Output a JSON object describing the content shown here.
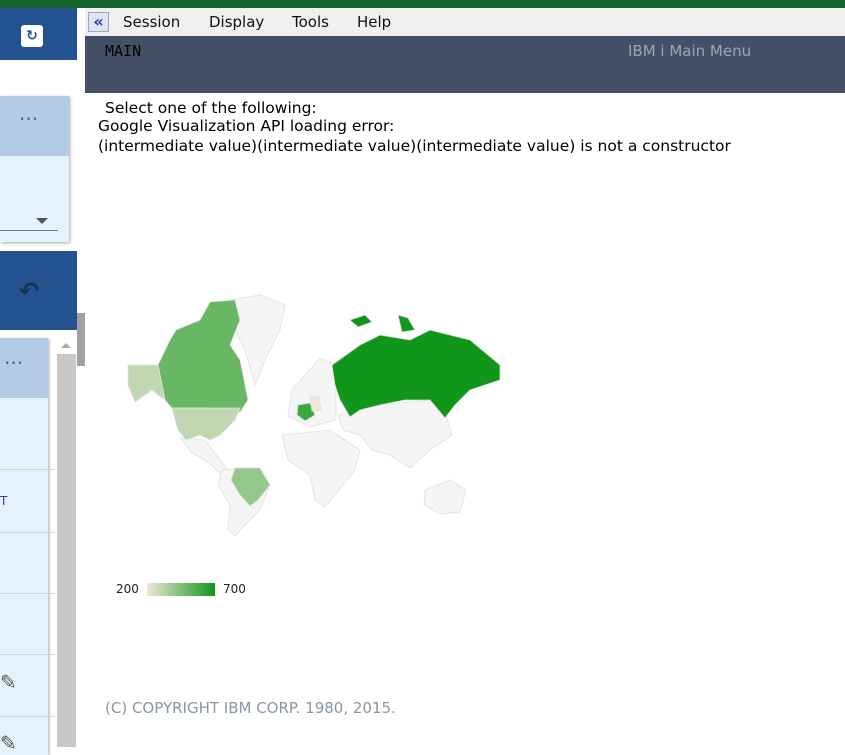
{
  "menu": {
    "back_icon": "double-chevron-left-icon",
    "items": [
      "Session",
      "Display",
      "Tools",
      "Help"
    ]
  },
  "header": {
    "screen_id": "MAIN",
    "title": "IBM i Main Menu"
  },
  "content": {
    "prompt": "Select one of the following:",
    "error_line1": "Google Visualization API loading error:",
    "error_line2": "(intermediate value)(intermediate value)(intermediate value) is not a constructor",
    "copyright": "(C) COPYRIGHT IBM CORP. 1980, 2015."
  },
  "sidebar": {
    "partial_text": "T",
    "icons": [
      "refresh-icon",
      "more-vert-icon",
      "dropdown-arrow-icon",
      "undo-icon",
      "edit-icon"
    ]
  },
  "chart_data": {
    "type": "geo",
    "regions": [
      {
        "country": "Germany",
        "value": 200
      },
      {
        "country": "United States",
        "value": 300
      },
      {
        "country": "Brazil",
        "value": 400
      },
      {
        "country": "Canada",
        "value": 500
      },
      {
        "country": "France",
        "value": 600
      },
      {
        "country": "Russia",
        "value": 700
      }
    ],
    "color_axis": {
      "min": 200,
      "max": 700,
      "min_label": "200",
      "max_label": "700",
      "colors": [
        "#ece9d8",
        "#109618"
      ]
    },
    "no_data_color": "#f5f5f5"
  }
}
